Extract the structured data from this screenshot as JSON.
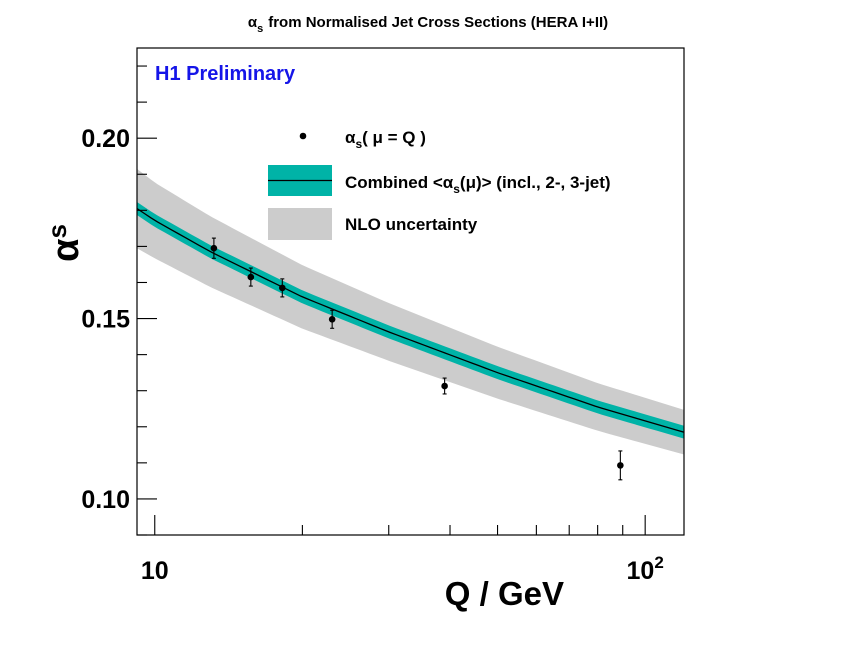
{
  "chart_data": {
    "type": "scatter",
    "title": {
      "symbol": "α",
      "subscript": "s",
      "rest": "from Normalised Jet Cross Sections (HERA I+II)"
    },
    "annotation": "H1 Preliminary",
    "xlabel": "Q / GeV",
    "ylabel": {
      "symbol": "α",
      "subscript": "s"
    },
    "xscale": "log",
    "xlim": [
      9.2,
      120
    ],
    "ylim": [
      0.09,
      0.225
    ],
    "xticks": [
      {
        "value": 10,
        "label": "10",
        "sup": ""
      },
      {
        "value": 100,
        "label": "10",
        "sup": "2"
      }
    ],
    "yticks": [
      {
        "value": 0.1,
        "label": "0.10"
      },
      {
        "value": 0.15,
        "label": "0.15"
      },
      {
        "value": 0.2,
        "label": "0.20"
      }
    ],
    "legend_position": "top-right",
    "legend": [
      {
        "key": "points",
        "pre": "α",
        "sub": "s",
        "post": "( μ = Q )"
      },
      {
        "key": "combined",
        "pre": "Combined <α",
        "sub": "s",
        "post": "(μ)> (incl., 2-, 3-jet)"
      },
      {
        "key": "nlo",
        "pre": "NLO uncertainty",
        "sub": "",
        "post": ""
      }
    ],
    "series": [
      {
        "name": "αs(μ = Q)",
        "kind": "points",
        "x": [
          13.2,
          15.7,
          18.2,
          23.0,
          39.0,
          89.0
        ],
        "y": [
          0.1695,
          0.1615,
          0.1585,
          0.1498,
          0.1313,
          0.1093
        ],
        "yerr": [
          0.0028,
          0.0025,
          0.0025,
          0.0025,
          0.0022,
          0.004
        ]
      },
      {
        "name": "Combined <αs(μ)> (incl., 2-, 3-jet)",
        "kind": "band",
        "x": [
          9.2,
          10,
          13,
          20,
          30,
          50,
          80,
          120
        ],
        "y": [
          0.1805,
          0.1772,
          0.1685,
          0.156,
          0.1463,
          0.135,
          0.1255,
          0.1185
        ],
        "half_width": 0.0018,
        "color": "#00b3a7"
      },
      {
        "name": "NLO uncertainty",
        "kind": "band",
        "x": [
          9.2,
          10,
          13,
          20,
          30,
          50,
          80,
          120
        ],
        "y": [
          0.1805,
          0.1772,
          0.1685,
          0.156,
          0.1463,
          0.135,
          0.1255,
          0.1185
        ],
        "half_width": [
          0.011,
          0.0105,
          0.0098,
          0.0088,
          0.008,
          0.0072,
          0.0066,
          0.0062
        ],
        "color": "#cccccc"
      }
    ]
  }
}
